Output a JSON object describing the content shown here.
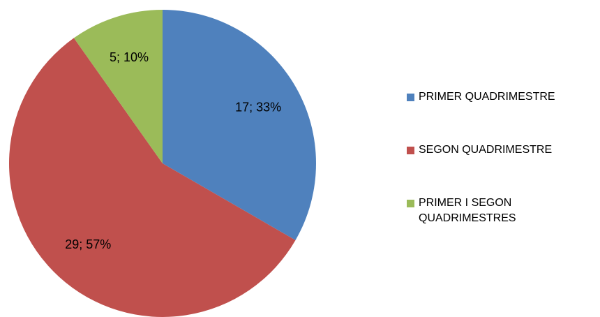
{
  "chart_data": {
    "type": "pie",
    "categories": [
      "PRIMER QUADRIMESTRE",
      "SEGON QUADRIMESTRE",
      "PRIMER I SEGON QUADRIMESTRES"
    ],
    "values": [
      17,
      29,
      5
    ],
    "value_labels": [
      "17; 33%",
      "29; 57%",
      "5; 10%"
    ],
    "colors": [
      "#4f81bd",
      "#c0504d",
      "#9bbb59"
    ],
    "legend": "right"
  }
}
